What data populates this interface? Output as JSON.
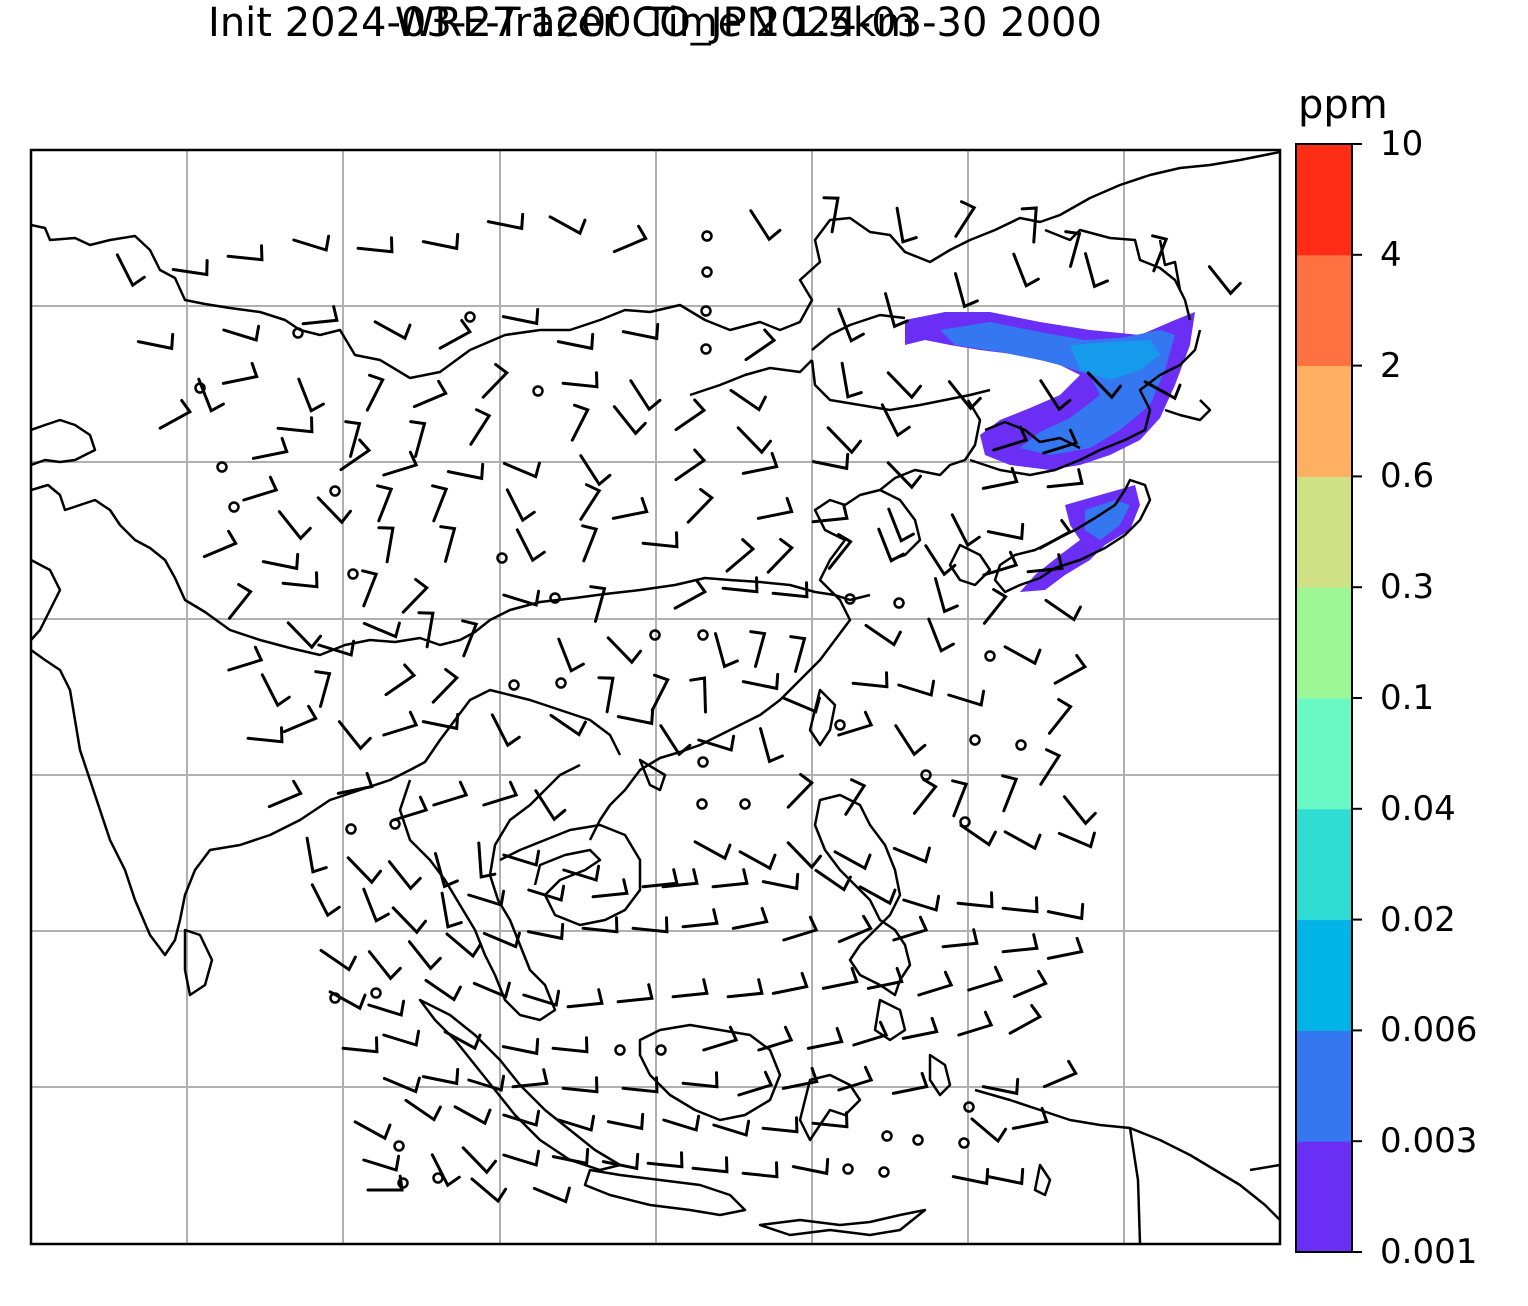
{
  "title": {
    "line1": "WRF-Tracer CO_JPN 1.5km",
    "line2": "Init 2024-03-27 1200 Time 2024-03-30 2000"
  },
  "colorbar": {
    "unit": "ppm",
    "levels": [
      "0.001",
      "0.003",
      "0.006",
      "0.02",
      "0.04",
      "0.1",
      "0.3",
      "0.6",
      "2",
      "4",
      "10"
    ],
    "colors": [
      "#6a2ef5",
      "#3577f0",
      "#02b3e8",
      "#2fddd2",
      "#6af8c4",
      "#9cf797",
      "#d0e084",
      "#ffb060",
      "#ff7140",
      "#ff2c16"
    ]
  },
  "map": {
    "gridlines": true,
    "features": [
      "coastlines",
      "country-borders",
      "wind-barbs",
      "calm-circles",
      "tracer-co-plume"
    ]
  }
}
